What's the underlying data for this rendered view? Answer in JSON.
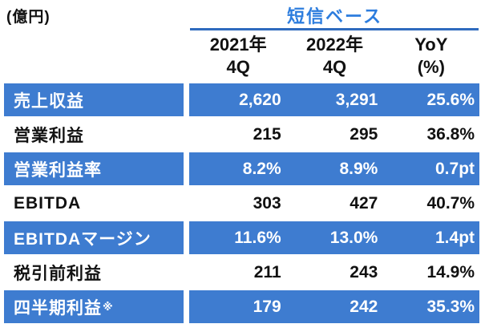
{
  "unit_label": "(億円)",
  "header": {
    "group_title": "短信ベース",
    "columns": [
      {
        "line1": "2021年",
        "line2": "4Q"
      },
      {
        "line1": "2022年",
        "line2": "4Q"
      },
      {
        "line1": "YoY",
        "line2": "(%)"
      }
    ]
  },
  "rows": [
    {
      "label": "売上収益",
      "note": "",
      "highlight": true,
      "values": [
        "2,620",
        "3,291",
        "25.6%"
      ]
    },
    {
      "label": "営業利益",
      "note": "",
      "highlight": false,
      "values": [
        "215",
        "295",
        "36.8%"
      ]
    },
    {
      "label": "営業利益率",
      "note": "",
      "highlight": true,
      "values": [
        "8.2%",
        "8.9%",
        "0.7pt"
      ]
    },
    {
      "label": "EBITDA",
      "note": "",
      "highlight": false,
      "values": [
        "303",
        "427",
        "40.7%"
      ]
    },
    {
      "label": "EBITDAマージン",
      "note": "",
      "highlight": true,
      "values": [
        "11.6%",
        "13.0%",
        "1.4pt"
      ]
    },
    {
      "label": "税引前利益",
      "note": "",
      "highlight": false,
      "values": [
        "211",
        "243",
        "14.9%"
      ]
    },
    {
      "label": "四半期利益",
      "note": "※",
      "highlight": true,
      "values": [
        "179",
        "242",
        "35.3%"
      ]
    }
  ],
  "colors": {
    "row_fill_blue": "#3E7CD0",
    "title_blue": "#2D7DDE",
    "rule_blue": "#2F6BBE",
    "text_dark": "#111111",
    "text_light": "#FFFFFF"
  },
  "chart_data": {
    "type": "table",
    "title": "短信ベース",
    "unit": "(億円)",
    "columns": [
      "2021年4Q",
      "2022年4Q",
      "YoY(%)"
    ],
    "rows": [
      [
        "売上収益",
        "2,620",
        "3,291",
        "25.6%"
      ],
      [
        "営業利益",
        "215",
        "295",
        "36.8%"
      ],
      [
        "営業利益率",
        "8.2%",
        "8.9%",
        "0.7pt"
      ],
      [
        "EBITDA",
        "303",
        "427",
        "40.7%"
      ],
      [
        "EBITDAマージン",
        "11.6%",
        "13.0%",
        "1.4pt"
      ],
      [
        "税引前利益",
        "211",
        "243",
        "14.9%"
      ],
      [
        "四半期利益※",
        "179",
        "242",
        "35.3%"
      ]
    ]
  }
}
